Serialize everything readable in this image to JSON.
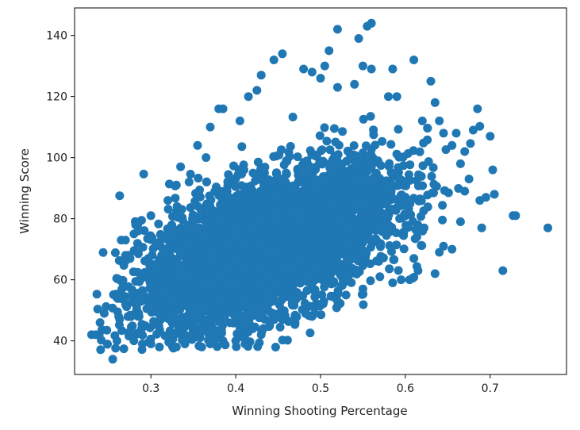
{
  "chart_data": {
    "type": "scatter",
    "title": "",
    "xlabel": "Winning Shooting Percentage",
    "ylabel": "Winning Score",
    "xlim": [
      0.21,
      0.79
    ],
    "ylim": [
      29,
      149
    ],
    "xticks": [
      0.3,
      0.4,
      0.5,
      0.6,
      0.7
    ],
    "xtick_labels": [
      "0.3",
      "0.4",
      "0.5",
      "0.6",
      "0.7"
    ],
    "yticks": [
      40,
      60,
      80,
      100,
      120,
      140
    ],
    "ytick_labels": [
      "40",
      "60",
      "80",
      "100",
      "120",
      "140"
    ],
    "grid": false,
    "legend": "none",
    "marker_color": "#1f77b4",
    "cluster": {
      "x_mean": 0.44,
      "x_sd": 0.075,
      "y_at_x_mean": 71,
      "slope": 105,
      "y_residual_sd": 11,
      "x_range": [
        0.23,
        0.72
      ],
      "y_range": [
        34,
        144
      ],
      "approx_count": 4500
    },
    "points": [
      {
        "x": 0.23,
        "y": 42
      },
      {
        "x": 0.235,
        "y": 42
      },
      {
        "x": 0.24,
        "y": 46
      },
      {
        "x": 0.245,
        "y": 49
      },
      {
        "x": 0.255,
        "y": 34
      },
      {
        "x": 0.26,
        "y": 40
      },
      {
        "x": 0.262,
        "y": 48
      },
      {
        "x": 0.265,
        "y": 73
      },
      {
        "x": 0.27,
        "y": 73
      },
      {
        "x": 0.27,
        "y": 68
      },
      {
        "x": 0.28,
        "y": 75
      },
      {
        "x": 0.285,
        "y": 76
      },
      {
        "x": 0.3,
        "y": 81
      },
      {
        "x": 0.32,
        "y": 86
      },
      {
        "x": 0.33,
        "y": 91
      },
      {
        "x": 0.335,
        "y": 97
      },
      {
        "x": 0.345,
        "y": 92
      },
      {
        "x": 0.355,
        "y": 104
      },
      {
        "x": 0.365,
        "y": 100
      },
      {
        "x": 0.37,
        "y": 110
      },
      {
        "x": 0.38,
        "y": 116
      },
      {
        "x": 0.385,
        "y": 116
      },
      {
        "x": 0.405,
        "y": 112
      },
      {
        "x": 0.415,
        "y": 120
      },
      {
        "x": 0.425,
        "y": 122
      },
      {
        "x": 0.43,
        "y": 127
      },
      {
        "x": 0.445,
        "y": 132
      },
      {
        "x": 0.455,
        "y": 134
      },
      {
        "x": 0.48,
        "y": 129
      },
      {
        "x": 0.49,
        "y": 128
      },
      {
        "x": 0.5,
        "y": 126
      },
      {
        "x": 0.505,
        "y": 130
      },
      {
        "x": 0.51,
        "y": 135
      },
      {
        "x": 0.52,
        "y": 142
      },
      {
        "x": 0.52,
        "y": 123
      },
      {
        "x": 0.54,
        "y": 124
      },
      {
        "x": 0.545,
        "y": 139
      },
      {
        "x": 0.55,
        "y": 130
      },
      {
        "x": 0.555,
        "y": 143
      },
      {
        "x": 0.56,
        "y": 144
      },
      {
        "x": 0.56,
        "y": 129
      },
      {
        "x": 0.58,
        "y": 120
      },
      {
        "x": 0.585,
        "y": 129
      },
      {
        "x": 0.59,
        "y": 120
      },
      {
        "x": 0.61,
        "y": 132
      },
      {
        "x": 0.62,
        "y": 112
      },
      {
        "x": 0.63,
        "y": 125
      },
      {
        "x": 0.635,
        "y": 118
      },
      {
        "x": 0.64,
        "y": 112
      },
      {
        "x": 0.645,
        "y": 108
      },
      {
        "x": 0.655,
        "y": 104
      },
      {
        "x": 0.66,
        "y": 108
      },
      {
        "x": 0.665,
        "y": 98
      },
      {
        "x": 0.67,
        "y": 102
      },
      {
        "x": 0.675,
        "y": 93
      },
      {
        "x": 0.68,
        "y": 109
      },
      {
        "x": 0.685,
        "y": 116
      },
      {
        "x": 0.695,
        "y": 87
      },
      {
        "x": 0.7,
        "y": 107
      },
      {
        "x": 0.703,
        "y": 96
      },
      {
        "x": 0.705,
        "y": 88
      },
      {
        "x": 0.69,
        "y": 77
      },
      {
        "x": 0.67,
        "y": 89
      },
      {
        "x": 0.665,
        "y": 79
      },
      {
        "x": 0.655,
        "y": 70
      },
      {
        "x": 0.645,
        "y": 71
      },
      {
        "x": 0.64,
        "y": 69
      },
      {
        "x": 0.635,
        "y": 62
      },
      {
        "x": 0.615,
        "y": 63
      },
      {
        "x": 0.61,
        "y": 67
      },
      {
        "x": 0.605,
        "y": 60
      },
      {
        "x": 0.595,
        "y": 60
      },
      {
        "x": 0.585,
        "y": 59
      },
      {
        "x": 0.57,
        "y": 61
      },
      {
        "x": 0.55,
        "y": 57
      },
      {
        "x": 0.53,
        "y": 55
      },
      {
        "x": 0.52,
        "y": 53
      },
      {
        "x": 0.49,
        "y": 48
      },
      {
        "x": 0.47,
        "y": 46
      },
      {
        "x": 0.455,
        "y": 47
      },
      {
        "x": 0.44,
        "y": 45
      },
      {
        "x": 0.43,
        "y": 42
      },
      {
        "x": 0.42,
        "y": 44
      },
      {
        "x": 0.4,
        "y": 40
      },
      {
        "x": 0.385,
        "y": 40
      },
      {
        "x": 0.37,
        "y": 39
      },
      {
        "x": 0.36,
        "y": 38
      },
      {
        "x": 0.34,
        "y": 39
      },
      {
        "x": 0.33,
        "y": 38
      },
      {
        "x": 0.31,
        "y": 38
      },
      {
        "x": 0.3,
        "y": 39
      },
      {
        "x": 0.29,
        "y": 39
      },
      {
        "x": 0.28,
        "y": 40
      },
      {
        "x": 0.715,
        "y": 63
      },
      {
        "x": 0.727,
        "y": 81
      },
      {
        "x": 0.73,
        "y": 81
      },
      {
        "x": 0.768,
        "y": 77
      }
    ]
  }
}
